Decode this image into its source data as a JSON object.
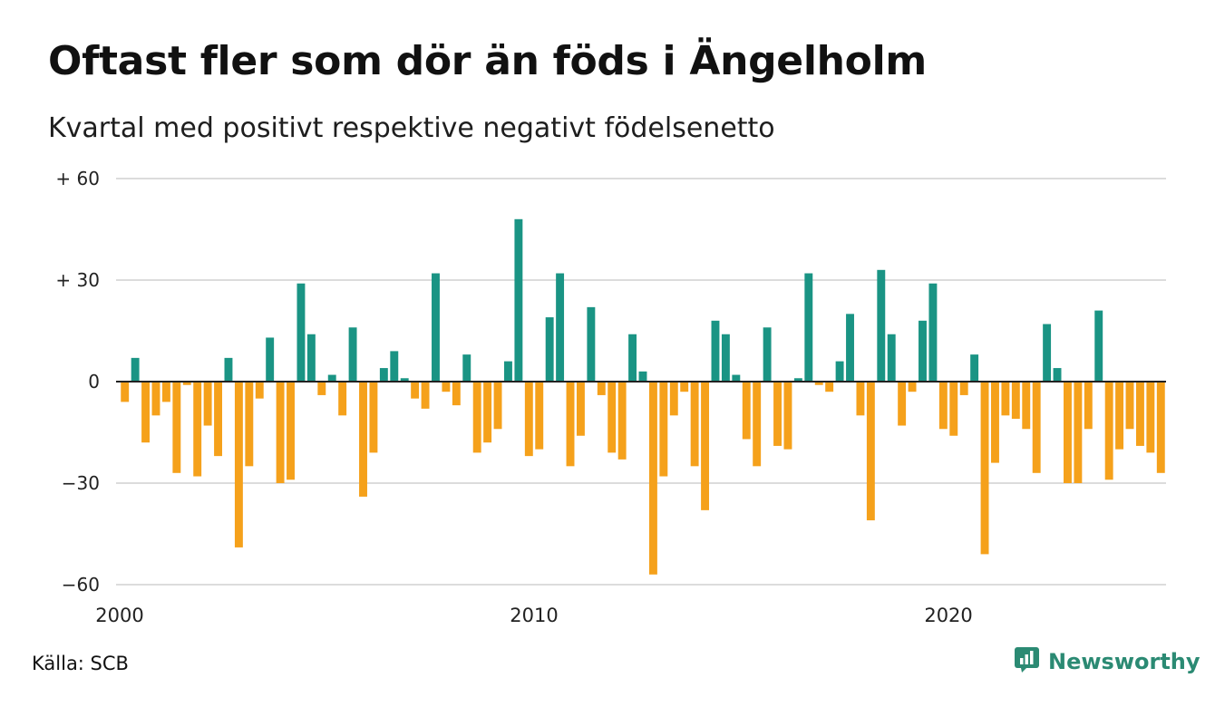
{
  "header": {
    "title": "Oftast fler som dör än föds i Ängelholm",
    "subtitle": "Kvartal med positivt respektive negativt födelsenetto"
  },
  "footer": {
    "source": "Källa: SCB",
    "brand": "Newsworthy",
    "brand_icon": "newsworthy-logo-icon"
  },
  "colors": {
    "positive": "#1a9484",
    "negative": "#f5a11b",
    "grid": "#dcdcdc",
    "axis": "#222222",
    "brand": "#2b8a73"
  },
  "chart_data": {
    "type": "bar",
    "title": "Oftast fler som dör än föds i Ängelholm",
    "subtitle": "Kvartal med positivt respektive negativt födelsenetto",
    "x_start_year": 2000,
    "periods_per_year": 4,
    "x_ticks": [
      "2000",
      "2010",
      "2020"
    ],
    "y_ticks": [
      {
        "value": 60,
        "label": "+ 60"
      },
      {
        "value": 30,
        "label": "+ 30"
      },
      {
        "value": 0,
        "label": "0"
      },
      {
        "value": -30,
        "label": "−30"
      },
      {
        "value": -60,
        "label": "−60"
      }
    ],
    "ylim": [
      -60,
      60
    ],
    "grid": true,
    "legend": "none",
    "values": [
      -6,
      7,
      -18,
      -10,
      -6,
      -27,
      -1,
      -28,
      -13,
      -22,
      7,
      -49,
      -25,
      -5,
      13,
      -30,
      -29,
      29,
      14,
      -4,
      2,
      -10,
      16,
      -34,
      -21,
      4,
      9,
      1,
      -5,
      -8,
      32,
      -3,
      -7,
      8,
      -21,
      -18,
      -14,
      6,
      48,
      -22,
      -20,
      19,
      32,
      -25,
      -16,
      22,
      -4,
      -21,
      -23,
      14,
      3,
      -57,
      -28,
      -10,
      -3,
      -25,
      -38,
      18,
      14,
      2,
      -17,
      -25,
      16,
      -19,
      -20,
      1,
      32,
      -1,
      -3,
      6,
      20,
      -10,
      -41,
      33,
      14,
      -13,
      -3,
      18,
      29,
      -14,
      -16,
      -4,
      8,
      -51,
      -24,
      -10,
      -11,
      -14,
      -27,
      17,
      4,
      -30,
      -30,
      -14,
      21,
      -29,
      -20,
      -14,
      -19,
      -21,
      -27
    ]
  }
}
